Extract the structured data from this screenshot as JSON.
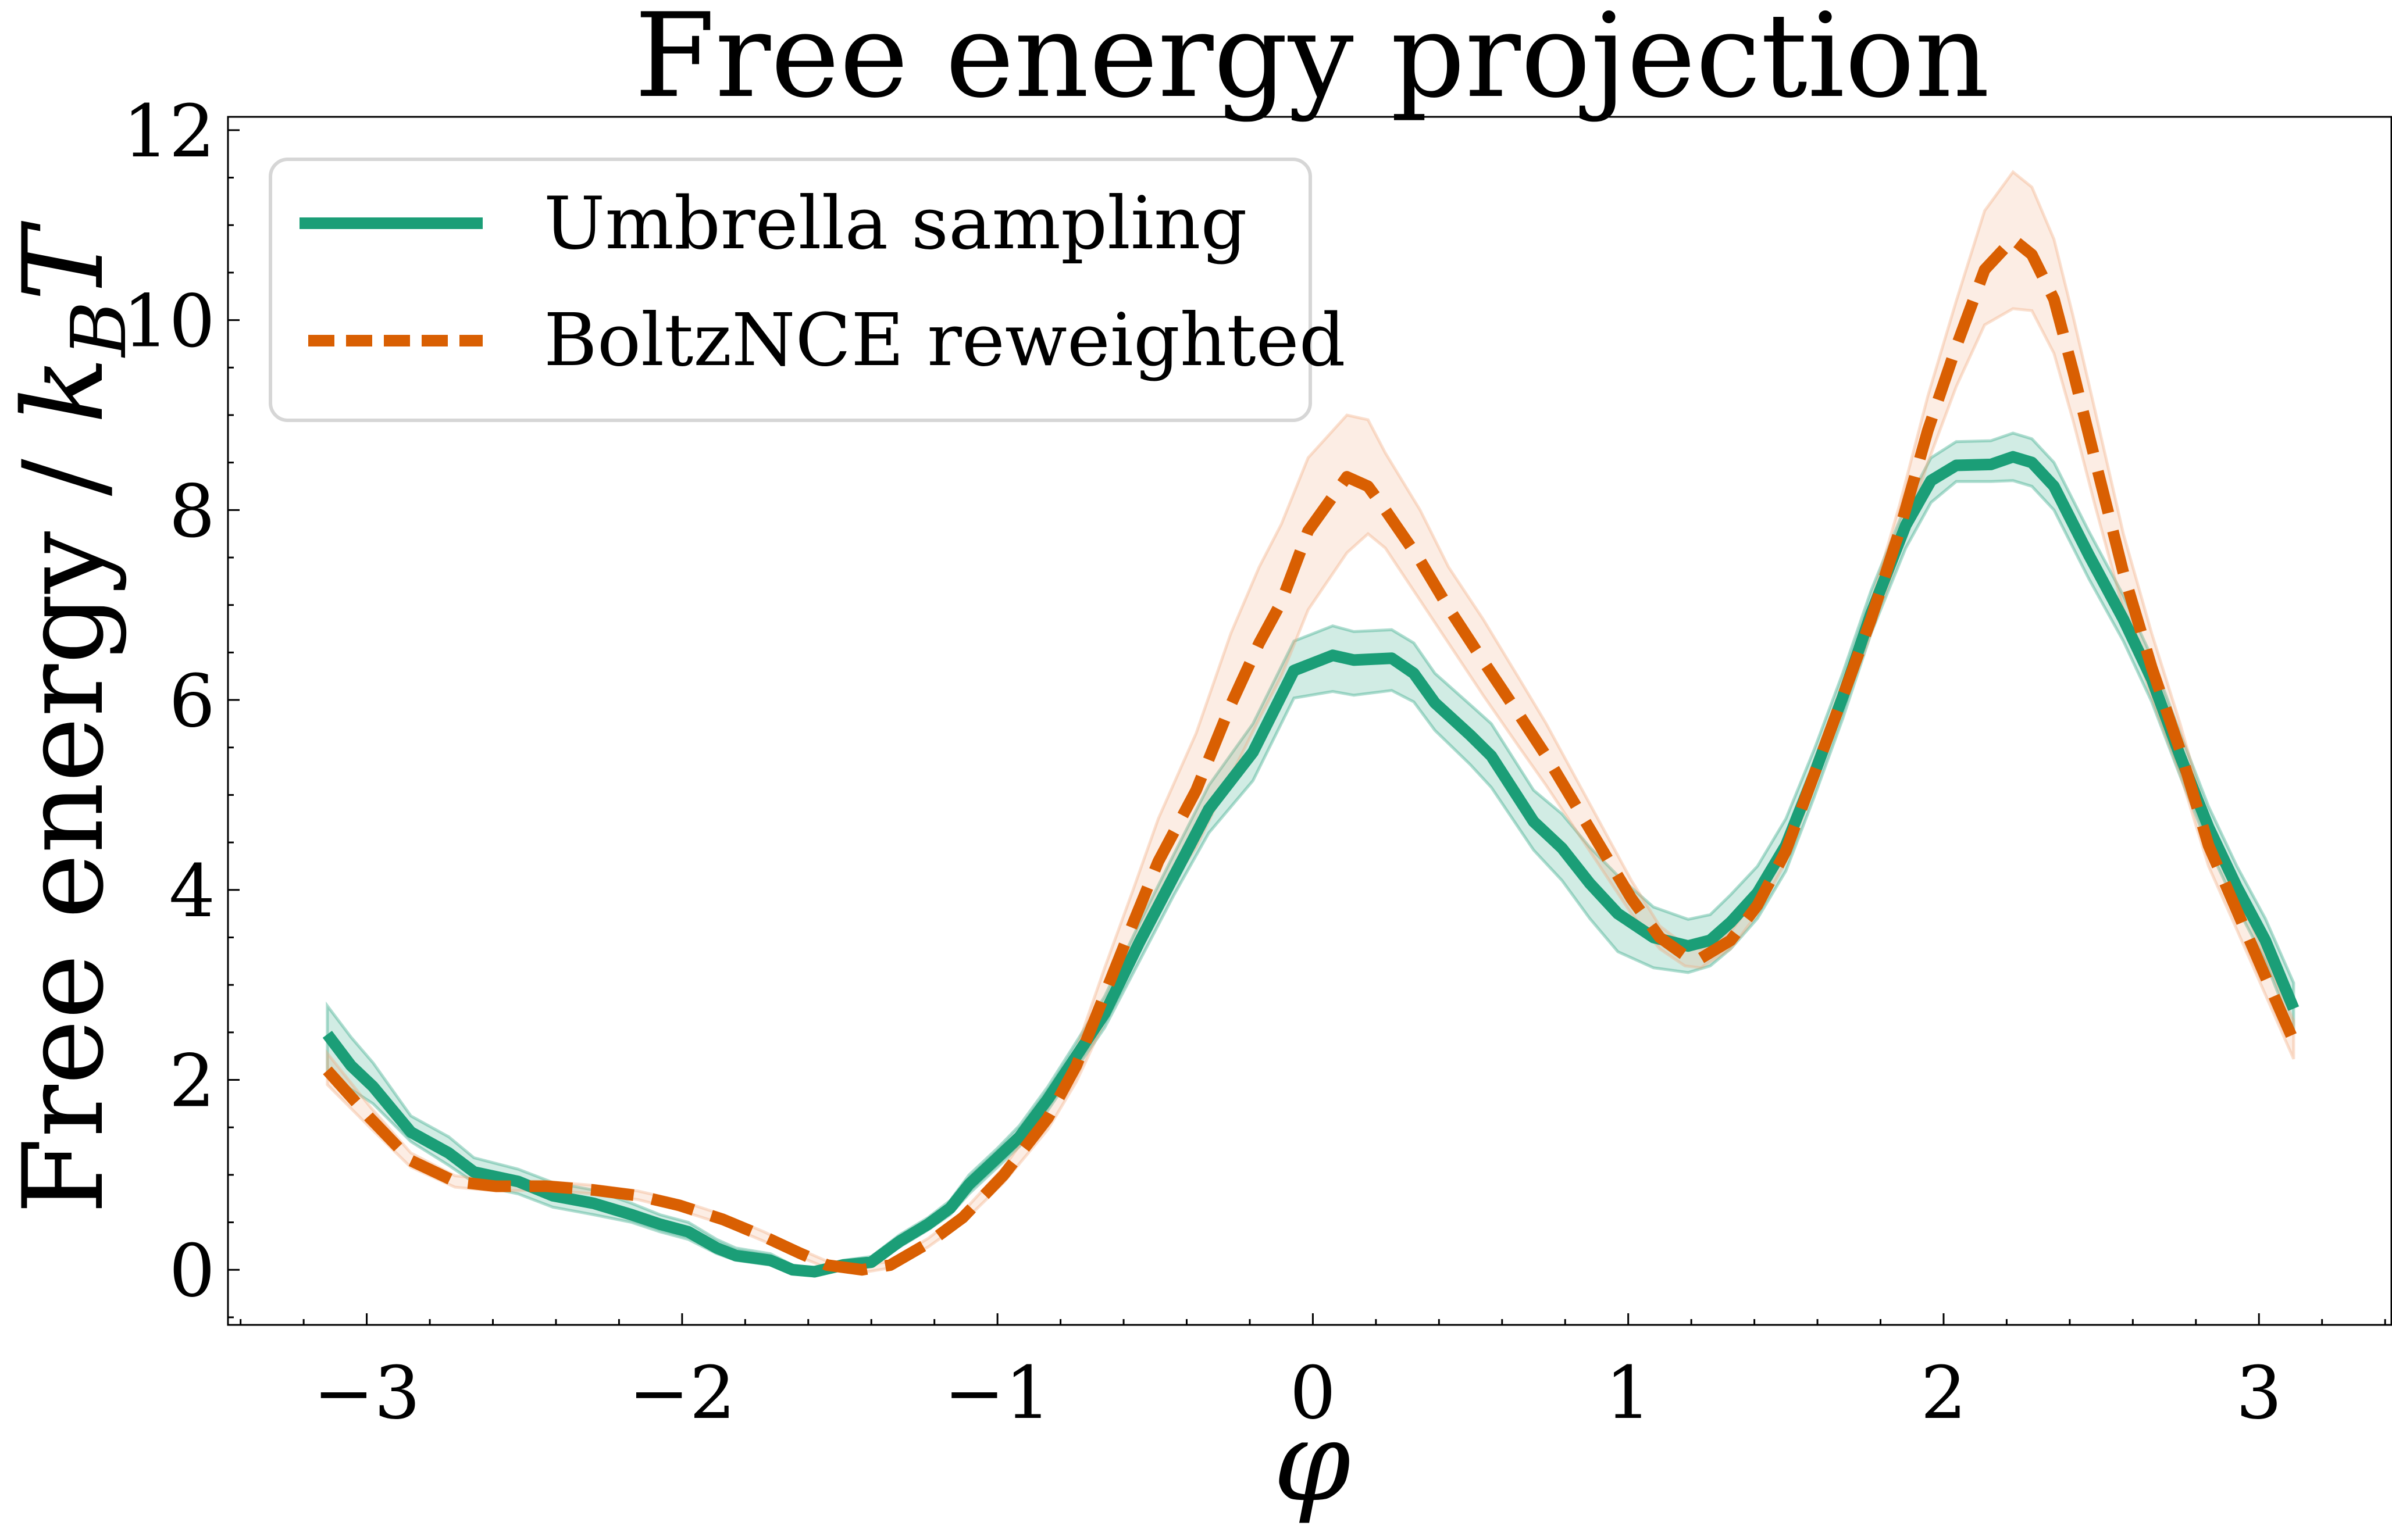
{
  "chart_data": {
    "type": "line",
    "title": "Free energy projection",
    "xlabel": "φ",
    "ylabel": {
      "prefix": "Free energy / ",
      "k": "k",
      "sub": "B",
      "T": "T"
    },
    "xlim": [
      -3.44,
      3.42
    ],
    "ylim": [
      -0.58,
      12.14
    ],
    "xticks": [
      -3,
      -2,
      -1,
      0,
      1,
      2,
      3
    ],
    "xtick_labels": [
      "−3",
      "−2",
      "−1",
      "0",
      "1",
      "2",
      "3"
    ],
    "yticks": [
      0,
      2,
      4,
      6,
      8,
      10,
      12
    ],
    "ytick_labels": [
      "0",
      "2",
      "4",
      "6",
      "8",
      "10",
      "12"
    ],
    "x_minor_step": 0.2,
    "y_minor_step": 0.5,
    "grid": false,
    "legend_position": "upper-left",
    "series": [
      {
        "name": "Umbrella sampling",
        "style": "solid",
        "color": "#1b9e77",
        "band_color": "#1b9e77",
        "x": [
          -3.125,
          -3.05,
          -2.98,
          -2.86,
          -2.74,
          -2.66,
          -2.59,
          -2.52,
          -2.41,
          -2.28,
          -2.16,
          -2.07,
          -1.98,
          -1.89,
          -1.83,
          -1.72,
          -1.65,
          -1.58,
          -1.49,
          -1.4,
          -1.31,
          -1.22,
          -1.15,
          -1.09,
          -1.0,
          -0.93,
          -0.84,
          -0.75,
          -0.66,
          -0.55,
          -0.44,
          -0.33,
          -0.19,
          -0.06,
          0.063,
          0.13,
          0.25,
          0.32,
          0.387,
          0.499,
          0.566,
          0.7,
          0.79,
          0.878,
          0.967,
          1.08,
          1.19,
          1.26,
          1.325,
          1.41,
          1.5,
          1.59,
          1.68,
          1.77,
          1.88,
          1.96,
          2.04,
          2.15,
          2.22,
          2.28,
          2.35,
          2.46,
          2.57,
          2.66,
          2.75,
          2.84,
          2.93,
          3.02,
          3.11
        ],
        "y": [
          2.48,
          2.15,
          1.93,
          1.45,
          1.23,
          1.03,
          0.98,
          0.93,
          0.78,
          0.7,
          0.58,
          0.48,
          0.4,
          0.23,
          0.15,
          0.1,
          0.0,
          -0.02,
          0.05,
          0.08,
          0.3,
          0.48,
          0.65,
          0.9,
          1.18,
          1.4,
          1.8,
          2.25,
          2.7,
          3.45,
          4.15,
          4.85,
          5.45,
          6.31,
          6.47,
          6.42,
          6.44,
          6.28,
          5.97,
          5.63,
          5.41,
          4.72,
          4.44,
          4.07,
          3.75,
          3.5,
          3.41,
          3.47,
          3.66,
          3.97,
          4.47,
          5.22,
          6.03,
          6.91,
          7.84,
          8.31,
          8.47,
          8.48,
          8.56,
          8.5,
          8.25,
          7.53,
          6.85,
          6.22,
          5.41,
          4.66,
          4.03,
          3.47,
          2.75
        ],
        "y_lower": [
          2.1,
          1.9,
          1.75,
          1.35,
          1.1,
          0.92,
          0.85,
          0.8,
          0.66,
          0.58,
          0.5,
          0.4,
          0.32,
          0.17,
          0.1,
          0.05,
          -0.04,
          -0.05,
          0.02,
          0.05,
          0.24,
          0.42,
          0.58,
          0.8,
          1.08,
          1.3,
          1.68,
          2.12,
          2.55,
          3.25,
          3.95,
          4.6,
          5.15,
          6.02,
          6.09,
          6.05,
          6.1,
          5.98,
          5.68,
          5.32,
          5.08,
          4.42,
          4.1,
          3.7,
          3.35,
          3.18,
          3.13,
          3.2,
          3.38,
          3.7,
          4.2,
          4.98,
          5.8,
          6.7,
          7.6,
          8.08,
          8.3,
          8.3,
          8.31,
          8.25,
          8.0,
          7.28,
          6.62,
          5.98,
          5.2,
          4.45,
          3.82,
          3.25,
          2.5
        ],
        "y_upper": [
          2.78,
          2.45,
          2.18,
          1.62,
          1.4,
          1.18,
          1.12,
          1.06,
          0.92,
          0.84,
          0.7,
          0.58,
          0.5,
          0.32,
          0.23,
          0.17,
          0.05,
          0.02,
          0.1,
          0.14,
          0.37,
          0.55,
          0.73,
          1.0,
          1.28,
          1.52,
          1.93,
          2.4,
          2.88,
          3.65,
          4.38,
          5.1,
          5.75,
          6.62,
          6.78,
          6.72,
          6.74,
          6.6,
          6.28,
          5.95,
          5.75,
          5.05,
          4.8,
          4.45,
          4.15,
          3.82,
          3.69,
          3.74,
          3.95,
          4.25,
          4.75,
          5.48,
          6.28,
          7.15,
          8.05,
          8.55,
          8.72,
          8.73,
          8.81,
          8.75,
          8.5,
          7.78,
          7.1,
          6.45,
          5.65,
          4.88,
          4.25,
          3.7,
          3.02
        ]
      },
      {
        "name": "BoltzNCE reweighted",
        "style": "dashed",
        "color": "#d95f02",
        "band_color": "#f0a777",
        "x": [
          -3.125,
          -2.99,
          -2.86,
          -2.72,
          -2.59,
          -2.43,
          -2.28,
          -2.14,
          -2.01,
          -1.87,
          -1.74,
          -1.63,
          -1.54,
          -1.43,
          -1.34,
          -1.22,
          -1.11,
          -0.98,
          -0.84,
          -0.75,
          -0.66,
          -0.57,
          -0.49,
          -0.37,
          -0.26,
          -0.17,
          -0.1,
          -0.015,
          0.108,
          0.175,
          0.23,
          0.34,
          0.43,
          0.54,
          0.655,
          0.74,
          0.83,
          0.92,
          1.01,
          1.1,
          1.18,
          1.23,
          1.325,
          1.41,
          1.5,
          1.59,
          1.68,
          1.77,
          1.86,
          1.95,
          2.04,
          2.13,
          2.22,
          2.28,
          2.35,
          2.41,
          2.48,
          2.57,
          2.66,
          2.75,
          2.84,
          2.93,
          3.02,
          3.11
        ],
        "y": [
          2.1,
          1.6,
          1.15,
          0.93,
          0.88,
          0.88,
          0.84,
          0.78,
          0.68,
          0.53,
          0.35,
          0.18,
          0.05,
          0.0,
          0.05,
          0.28,
          0.55,
          1.0,
          1.6,
          2.15,
          2.9,
          3.65,
          4.3,
          5.05,
          5.95,
          6.6,
          7.03,
          7.78,
          8.35,
          8.25,
          8.0,
          7.47,
          6.97,
          6.41,
          5.84,
          5.41,
          4.91,
          4.41,
          3.91,
          3.5,
          3.31,
          3.28,
          3.47,
          3.84,
          4.41,
          5.22,
          6.03,
          6.85,
          7.78,
          8.84,
          9.72,
          10.53,
          10.85,
          10.69,
          10.22,
          9.47,
          8.53,
          7.34,
          6.34,
          5.47,
          4.47,
          3.78,
          3.09,
          2.41
        ],
        "y_lower": [
          1.95,
          1.5,
          1.08,
          0.87,
          0.83,
          0.84,
          0.8,
          0.74,
          0.63,
          0.48,
          0.3,
          0.14,
          0.02,
          -0.03,
          0.02,
          0.24,
          0.5,
          0.92,
          1.48,
          1.98,
          2.62,
          3.3,
          3.85,
          4.45,
          5.2,
          5.8,
          6.25,
          6.95,
          7.55,
          7.75,
          7.6,
          7.05,
          6.6,
          6.05,
          5.5,
          5.1,
          4.65,
          4.2,
          3.75,
          3.38,
          3.2,
          3.18,
          3.38,
          3.75,
          4.3,
          5.1,
          5.9,
          6.7,
          7.55,
          8.5,
          9.3,
          9.95,
          10.12,
          10.1,
          9.65,
          8.95,
          8.05,
          6.95,
          6.02,
          5.22,
          4.25,
          3.58,
          2.9,
          2.22
        ],
        "y_upper": [
          2.28,
          1.72,
          1.23,
          0.99,
          0.94,
          0.93,
          0.89,
          0.83,
          0.73,
          0.58,
          0.4,
          0.22,
          0.09,
          0.04,
          0.09,
          0.33,
          0.61,
          1.08,
          1.72,
          2.32,
          3.18,
          4.0,
          4.75,
          5.65,
          6.7,
          7.4,
          7.85,
          8.55,
          9.0,
          8.95,
          8.6,
          8.0,
          7.4,
          6.85,
          6.22,
          5.75,
          5.2,
          4.65,
          4.1,
          3.62,
          3.42,
          3.38,
          3.56,
          3.94,
          4.55,
          5.36,
          6.18,
          7.02,
          8.05,
          9.2,
          10.2,
          11.15,
          11.56,
          11.4,
          10.85,
          10.05,
          9.05,
          7.75,
          6.7,
          5.75,
          4.7,
          4.0,
          3.3,
          2.62
        ]
      }
    ]
  }
}
